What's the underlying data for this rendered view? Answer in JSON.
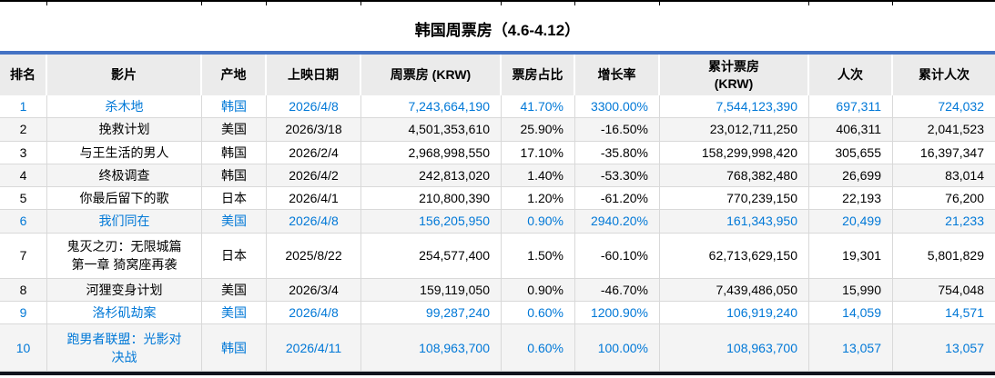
{
  "title": "韩国周票房（4.6-4.12）",
  "colors": {
    "accent_blue": "#4472C4",
    "highlight_text": "#0078D7",
    "header_bg": "#EBEBEB",
    "band_bg": "#F4F4F4",
    "gridline": "#D9D9D9",
    "bottom_border": "#10131C"
  },
  "table": {
    "columns": [
      "排名",
      "影片",
      "产地",
      "上映日期",
      "周票房 (KRW)",
      "票房占比",
      "增长率",
      "累计票房\n(KRW)",
      "人次",
      "累计人次"
    ],
    "rows": [
      {
        "rank": "1",
        "film": "杀木地",
        "origin": "韩国",
        "release_date": "2026/4/8",
        "weekly_gross": "7,243,664,190",
        "share": "41.70%",
        "growth": "3300.00%",
        "cumulative_gross": "7,544,123,390",
        "admissions": "697,311",
        "cumulative_admissions": "724,032",
        "highlight": true,
        "tall": false
      },
      {
        "rank": "2",
        "film": "挽救计划",
        "origin": "美国",
        "release_date": "2026/3/18",
        "weekly_gross": "4,501,353,610",
        "share": "25.90%",
        "growth": "-16.50%",
        "cumulative_gross": "23,012,711,250",
        "admissions": "406,311",
        "cumulative_admissions": "2,041,523",
        "highlight": false,
        "tall": false
      },
      {
        "rank": "3",
        "film": "与王生活的男人",
        "origin": "韩国",
        "release_date": "2026/2/4",
        "weekly_gross": "2,968,998,550",
        "share": "17.10%",
        "growth": "-35.80%",
        "cumulative_gross": "158,299,998,420",
        "admissions": "305,655",
        "cumulative_admissions": "16,397,347",
        "highlight": false,
        "tall": false
      },
      {
        "rank": "4",
        "film": "终极调查",
        "origin": "韩国",
        "release_date": "2026/4/2",
        "weekly_gross": "242,813,020",
        "share": "1.40%",
        "growth": "-53.30%",
        "cumulative_gross": "768,382,480",
        "admissions": "26,699",
        "cumulative_admissions": "83,014",
        "highlight": false,
        "tall": false
      },
      {
        "rank": "5",
        "film": "你最后留下的歌",
        "origin": "日本",
        "release_date": "2026/4/1",
        "weekly_gross": "210,800,390",
        "share": "1.20%",
        "growth": "-61.20%",
        "cumulative_gross": "770,239,150",
        "admissions": "22,193",
        "cumulative_admissions": "76,200",
        "highlight": false,
        "tall": false
      },
      {
        "rank": "6",
        "film": "我们同在",
        "origin": "美国",
        "release_date": "2026/4/8",
        "weekly_gross": "156,205,950",
        "share": "0.90%",
        "growth": "2940.20%",
        "cumulative_gross": "161,343,950",
        "admissions": "20,499",
        "cumulative_admissions": "21,233",
        "highlight": true,
        "tall": false
      },
      {
        "rank": "7",
        "film": "鬼灭之刃：无限城篇 第一章 猗窝座再袭",
        "origin": "日本",
        "release_date": "2025/8/22",
        "weekly_gross": "254,577,400",
        "share": "1.50%",
        "growth": "-60.10%",
        "cumulative_gross": "62,713,629,150",
        "admissions": "19,301",
        "cumulative_admissions": "5,801,829",
        "highlight": false,
        "tall": true
      },
      {
        "rank": "8",
        "film": "河狸变身计划",
        "origin": "美国",
        "release_date": "2026/3/4",
        "weekly_gross": "159,119,050",
        "share": "0.90%",
        "growth": "-46.70%",
        "cumulative_gross": "7,439,486,050",
        "admissions": "15,990",
        "cumulative_admissions": "754,048",
        "highlight": false,
        "tall": false
      },
      {
        "rank": "9",
        "film": "洛杉矶劫案",
        "origin": "美国",
        "release_date": "2026/4/8",
        "weekly_gross": "99,287,240",
        "share": "0.60%",
        "growth": "1200.90%",
        "cumulative_gross": "106,919,240",
        "admissions": "14,059",
        "cumulative_admissions": "14,571",
        "highlight": true,
        "tall": false
      },
      {
        "rank": "10",
        "film": "跑男者联盟：光影对决战",
        "origin": "韩国",
        "release_date": "2026/4/11",
        "weekly_gross": "108,963,700",
        "share": "0.60%",
        "growth": "100.00%",
        "cumulative_gross": "108,963,700",
        "admissions": "13,057",
        "cumulative_admissions": "13,057",
        "highlight": true,
        "tall": true
      }
    ]
  }
}
